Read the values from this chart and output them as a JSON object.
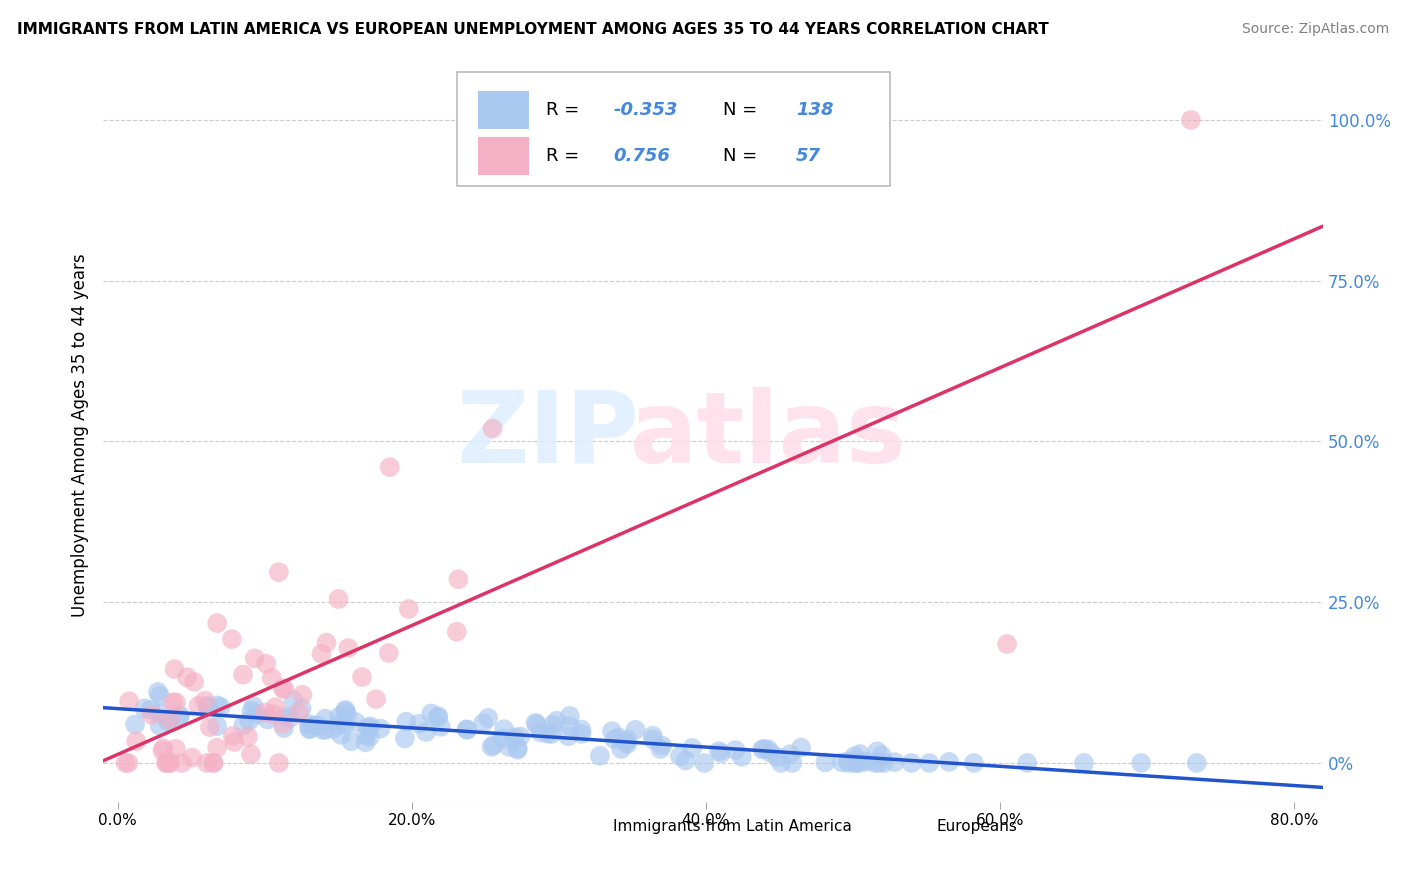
{
  "title": "IMMIGRANTS FROM LATIN AMERICA VS EUROPEAN UNEMPLOYMENT AMONG AGES 35 TO 44 YEARS CORRELATION CHART",
  "source": "Source: ZipAtlas.com",
  "ylabel": "Unemployment Among Ages 35 to 44 years",
  "ytick_labels": [
    "100.0%",
    "75.0%",
    "50.0%",
    "25.0%",
    "0%"
  ],
  "ytick_values": [
    1.0,
    0.75,
    0.5,
    0.25,
    0.0
  ],
  "xtick_labels": [
    "0.0%",
    "20.0%",
    "40.0%",
    "60.0%",
    "80.0%"
  ],
  "xtick_values": [
    0.0,
    0.2,
    0.4,
    0.6,
    0.8
  ],
  "xlim": [
    -0.01,
    0.82
  ],
  "ylim": [
    -0.06,
    1.08
  ],
  "blue_scatter_color": "#aac8f0",
  "pink_scatter_color": "#f4b0c4",
  "blue_line_color": "#2255cc",
  "pink_line_color": "#dd3366",
  "R_blue": -0.353,
  "N_blue": 138,
  "R_pink": 0.756,
  "N_pink": 57,
  "background_color": "#ffffff",
  "grid_color": "#cccccc",
  "tick_color": "#4488dd",
  "legend_R_blue": "-0.353",
  "legend_N_blue": "138",
  "legend_R_pink": "0.756",
  "legend_N_pink": "57"
}
